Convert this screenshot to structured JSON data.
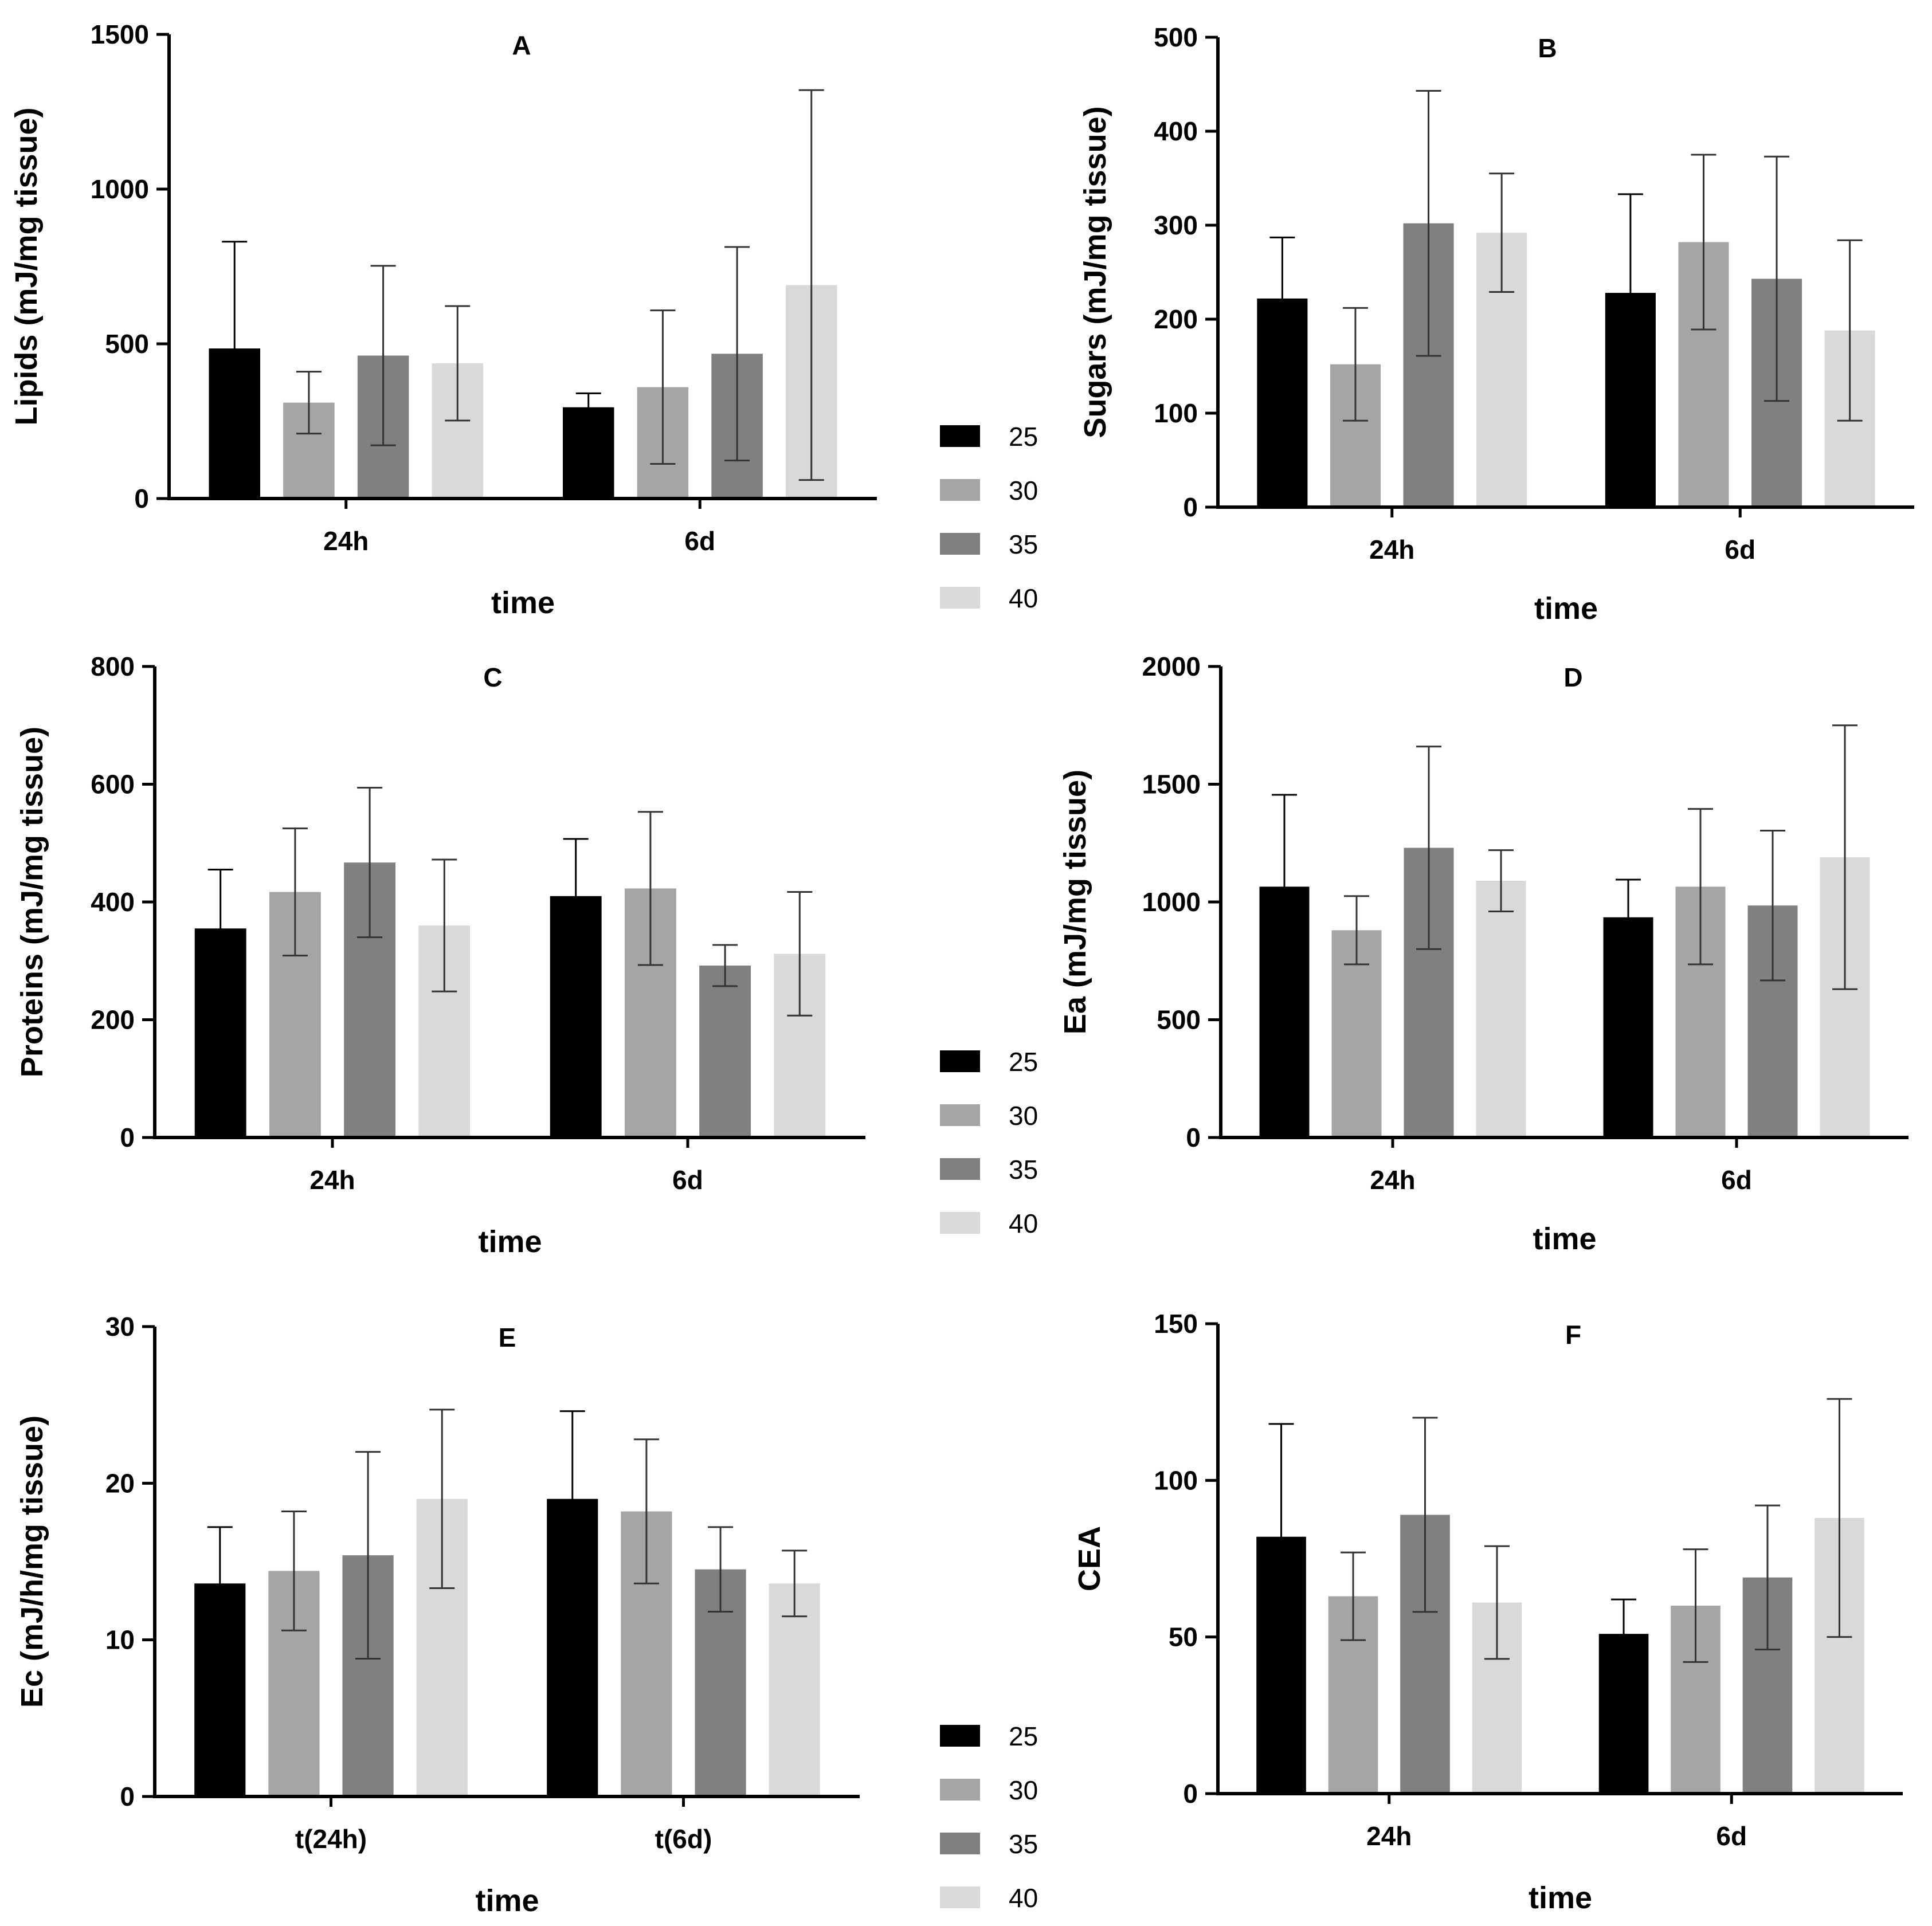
{
  "colors": {
    "series": [
      "#000000",
      "#a5a5a8",
      "#808080",
      "#d9d9d9"
    ],
    "axis": "#000000",
    "errorbar": "#333333"
  },
  "chart_data": [
    {
      "panel": "A",
      "type": "bar",
      "title": "A",
      "xlabel": "time",
      "ylabel": "Lipids (mJ/mg tissue)",
      "categories": [
        "24h",
        "6d"
      ],
      "ylim": [
        0,
        1500
      ],
      "yticks": [
        0,
        500,
        1000,
        1500
      ],
      "series": [
        {
          "name": "25",
          "values": [
            485,
            295
          ],
          "errors": [
            345,
            45
          ]
        },
        {
          "name": "30",
          "values": [
            310,
            360
          ],
          "errors": [
            100,
            248
          ]
        },
        {
          "name": "35",
          "values": [
            462,
            468
          ],
          "errors": [
            290,
            345
          ]
        },
        {
          "name": "40",
          "values": [
            437,
            690
          ],
          "errors": [
            185,
            630
          ]
        }
      ]
    },
    {
      "panel": "B",
      "type": "bar",
      "title": "B",
      "xlabel": "time",
      "ylabel": "Sugars (mJ/mg tissue)",
      "categories": [
        "24h",
        "6d"
      ],
      "ylim": [
        0,
        500
      ],
      "yticks": [
        0,
        100,
        200,
        300,
        400,
        500
      ],
      "series": [
        {
          "name": "25",
          "values": [
            222,
            228
          ],
          "errors": [
            65,
            105
          ]
        },
        {
          "name": "30",
          "values": [
            152,
            282
          ],
          "errors": [
            60,
            93
          ]
        },
        {
          "name": "35",
          "values": [
            302,
            243
          ],
          "errors": [
            141,
            130
          ]
        },
        {
          "name": "40",
          "values": [
            292,
            188
          ],
          "errors": [
            63,
            96
          ]
        }
      ]
    },
    {
      "panel": "C",
      "type": "bar",
      "title": "C",
      "xlabel": "time",
      "ylabel": "Proteins (mJ/mg tissue)",
      "categories": [
        "24h",
        "6d"
      ],
      "ylim": [
        0,
        800
      ],
      "yticks": [
        0,
        200,
        400,
        600,
        800
      ],
      "series": [
        {
          "name": "25",
          "values": [
            355,
            410
          ],
          "errors": [
            100,
            97
          ]
        },
        {
          "name": "30",
          "values": [
            417,
            423
          ],
          "errors": [
            108,
            130
          ]
        },
        {
          "name": "35",
          "values": [
            467,
            292
          ],
          "errors": [
            127,
            35
          ]
        },
        {
          "name": "40",
          "values": [
            360,
            312
          ],
          "errors": [
            112,
            105
          ]
        }
      ]
    },
    {
      "panel": "D",
      "type": "bar",
      "title": "D",
      "xlabel": "time",
      "ylabel": "Ea (mJ/mg tissue)",
      "categories": [
        "24h",
        "6d"
      ],
      "ylim": [
        0,
        2000
      ],
      "yticks": [
        0,
        500,
        1000,
        1500,
        2000
      ],
      "series": [
        {
          "name": "25",
          "values": [
            1065,
            935
          ],
          "errors": [
            390,
            160
          ]
        },
        {
          "name": "30",
          "values": [
            880,
            1065
          ],
          "errors": [
            145,
            330
          ]
        },
        {
          "name": "35",
          "values": [
            1230,
            985
          ],
          "errors": [
            430,
            318
          ]
        },
        {
          "name": "40",
          "values": [
            1090,
            1190
          ],
          "errors": [
            130,
            560
          ]
        }
      ]
    },
    {
      "panel": "E",
      "type": "bar",
      "title": "E",
      "xlabel": "time",
      "ylabel": "Ec (mJ/h/mg tissue)",
      "categories": [
        "t(24h)",
        "t(6d)"
      ],
      "ylim": [
        0,
        30
      ],
      "yticks": [
        0,
        10,
        20,
        30
      ],
      "series": [
        {
          "name": "25",
          "values": [
            13.6,
            19.0
          ],
          "errors": [
            3.6,
            5.6
          ]
        },
        {
          "name": "30",
          "values": [
            14.4,
            18.2
          ],
          "errors": [
            3.8,
            4.6
          ]
        },
        {
          "name": "35",
          "values": [
            15.4,
            14.5
          ],
          "errors": [
            6.6,
            2.7
          ]
        },
        {
          "name": "40",
          "values": [
            19.0,
            13.6
          ],
          "errors": [
            5.7,
            2.1
          ]
        }
      ]
    },
    {
      "panel": "F",
      "type": "bar",
      "title": "F",
      "xlabel": "time",
      "ylabel": "CEA",
      "categories": [
        "24h",
        "6d"
      ],
      "ylim": [
        0,
        150
      ],
      "yticks": [
        0,
        50,
        100,
        150
      ],
      "series": [
        {
          "name": "25",
          "values": [
            82,
            51
          ],
          "errors": [
            36,
            11
          ]
        },
        {
          "name": "30",
          "values": [
            63,
            60
          ],
          "errors": [
            14,
            18
          ]
        },
        {
          "name": "35",
          "values": [
            89,
            69
          ],
          "errors": [
            31,
            23
          ]
        },
        {
          "name": "40",
          "values": [
            61,
            88
          ],
          "errors": [
            18,
            38
          ]
        }
      ]
    }
  ],
  "legends": [
    {
      "items": [
        "25",
        "30",
        "35",
        "40"
      ]
    },
    {
      "items": [
        "25",
        "30",
        "35",
        "40"
      ]
    },
    {
      "items": [
        "25",
        "30",
        "35",
        "40"
      ]
    }
  ]
}
